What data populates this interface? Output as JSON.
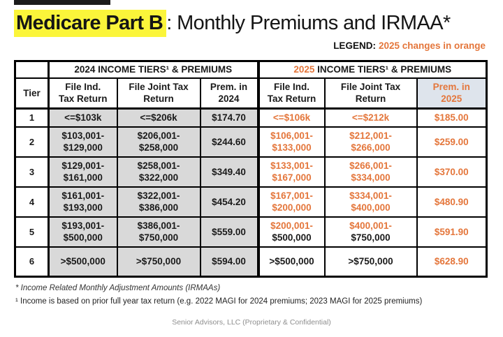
{
  "top": {
    "title_highlight": "Medicare Part B",
    "title_rest": ": Monthly Premiums and IRMAA*",
    "legend_label": "LEGEND:",
    "legend_text": "2025 changes in orange"
  },
  "table": {
    "tier_header": "Tier",
    "groups": [
      {
        "year": "2024",
        "rest": " INCOME TIERS¹ & PREMIUMS",
        "orange_year": false
      },
      {
        "year": "2025",
        "rest": " INCOME TIERS¹ & PREMIUMS",
        "orange_year": true
      }
    ],
    "col_headers_2024": [
      "File Ind.\nTax Return",
      "File Joint Tax\nReturn",
      "Prem. in\n2024"
    ],
    "col_headers_2025": [
      {
        "text": "File Ind.\nTax Return",
        "orange": false,
        "tinted": false
      },
      {
        "text": "File Joint Tax\nReturn",
        "orange": false,
        "tinted": false
      },
      {
        "text": "Prem. in\n2025",
        "orange": true,
        "tinted": true
      }
    ],
    "rows": [
      {
        "tier": "1",
        "y2024": [
          "<=$103k",
          "<=$206k",
          "$174.70"
        ],
        "y2025": [
          [
            {
              "t": "<=$106k",
              "o": true
            }
          ],
          [
            {
              "t": "<=$212k",
              "o": true
            }
          ],
          [
            {
              "t": "$185.00",
              "o": true
            }
          ]
        ]
      },
      {
        "tier": "2",
        "y2024": [
          "$103,001-\n$129,000",
          "$206,001-\n$258,000",
          "$244.60"
        ],
        "y2025": [
          [
            {
              "t": "$106,001-",
              "o": true
            },
            {
              "t": "$133,000",
              "o": true
            }
          ],
          [
            {
              "t": "$212,001-",
              "o": true
            },
            {
              "t": "$266,000",
              "o": true
            }
          ],
          [
            {
              "t": "$259.00",
              "o": true
            }
          ]
        ]
      },
      {
        "tier": "3",
        "y2024": [
          "$129,001-\n$161,000",
          "$258,001-\n$322,000",
          "$349.40"
        ],
        "y2025": [
          [
            {
              "t": "$133,001-",
              "o": true
            },
            {
              "t": "$167,000",
              "o": true
            }
          ],
          [
            {
              "t": "$266,001-",
              "o": true
            },
            {
              "t": "$334,000",
              "o": true
            }
          ],
          [
            {
              "t": "$370.00",
              "o": true
            }
          ]
        ]
      },
      {
        "tier": "4",
        "y2024": [
          "$161,001-\n$193,000",
          "$322,001-\n$386,000",
          "$454.20"
        ],
        "y2025": [
          [
            {
              "t": "$167,001-",
              "o": true
            },
            {
              "t": "$200,000",
              "o": true
            }
          ],
          [
            {
              "t": "$334,001-",
              "o": true
            },
            {
              "t": "$400,000",
              "o": true
            }
          ],
          [
            {
              "t": "$480.90",
              "o": true
            }
          ]
        ]
      },
      {
        "tier": "5",
        "y2024": [
          "$193,001-\n$500,000",
          "$386,001-\n$750,000",
          "$559.00"
        ],
        "y2025": [
          [
            {
              "t": "$200,001-",
              "o": true
            },
            {
              "t": "$500,000",
              "o": false
            }
          ],
          [
            {
              "t": "$400,001-",
              "o": true
            },
            {
              "t": "$750,000",
              "o": false
            }
          ],
          [
            {
              "t": "$591.90",
              "o": true
            }
          ]
        ]
      },
      {
        "tier": "6",
        "y2024": [
          ">$500,000",
          ">$750,000",
          "$594.00"
        ],
        "y2025": [
          [
            {
              "t": ">$500,000",
              "o": false
            }
          ],
          [
            {
              "t": ">$750,000",
              "o": false
            }
          ],
          [
            {
              "t": "$628.90",
              "o": true
            }
          ]
        ]
      }
    ]
  },
  "footnotes": {
    "fn1": "* Income Related Monthly Adjustment Amounts (IRMAAs)",
    "fn2": "¹ Income is based on prior full year tax return (e.g. 2022 MAGI for 2024 premiums; 2023 MAGI for 2025 premiums)"
  },
  "footer": "Senior Advisors, LLC (Proprietary & Confidential)",
  "colors": {
    "orange": "#E4763B",
    "gray_cell": "#D9D9D9",
    "highlight_yellow": "#FBF53A",
    "prem2025_header_bg": "#DEE4EC"
  }
}
